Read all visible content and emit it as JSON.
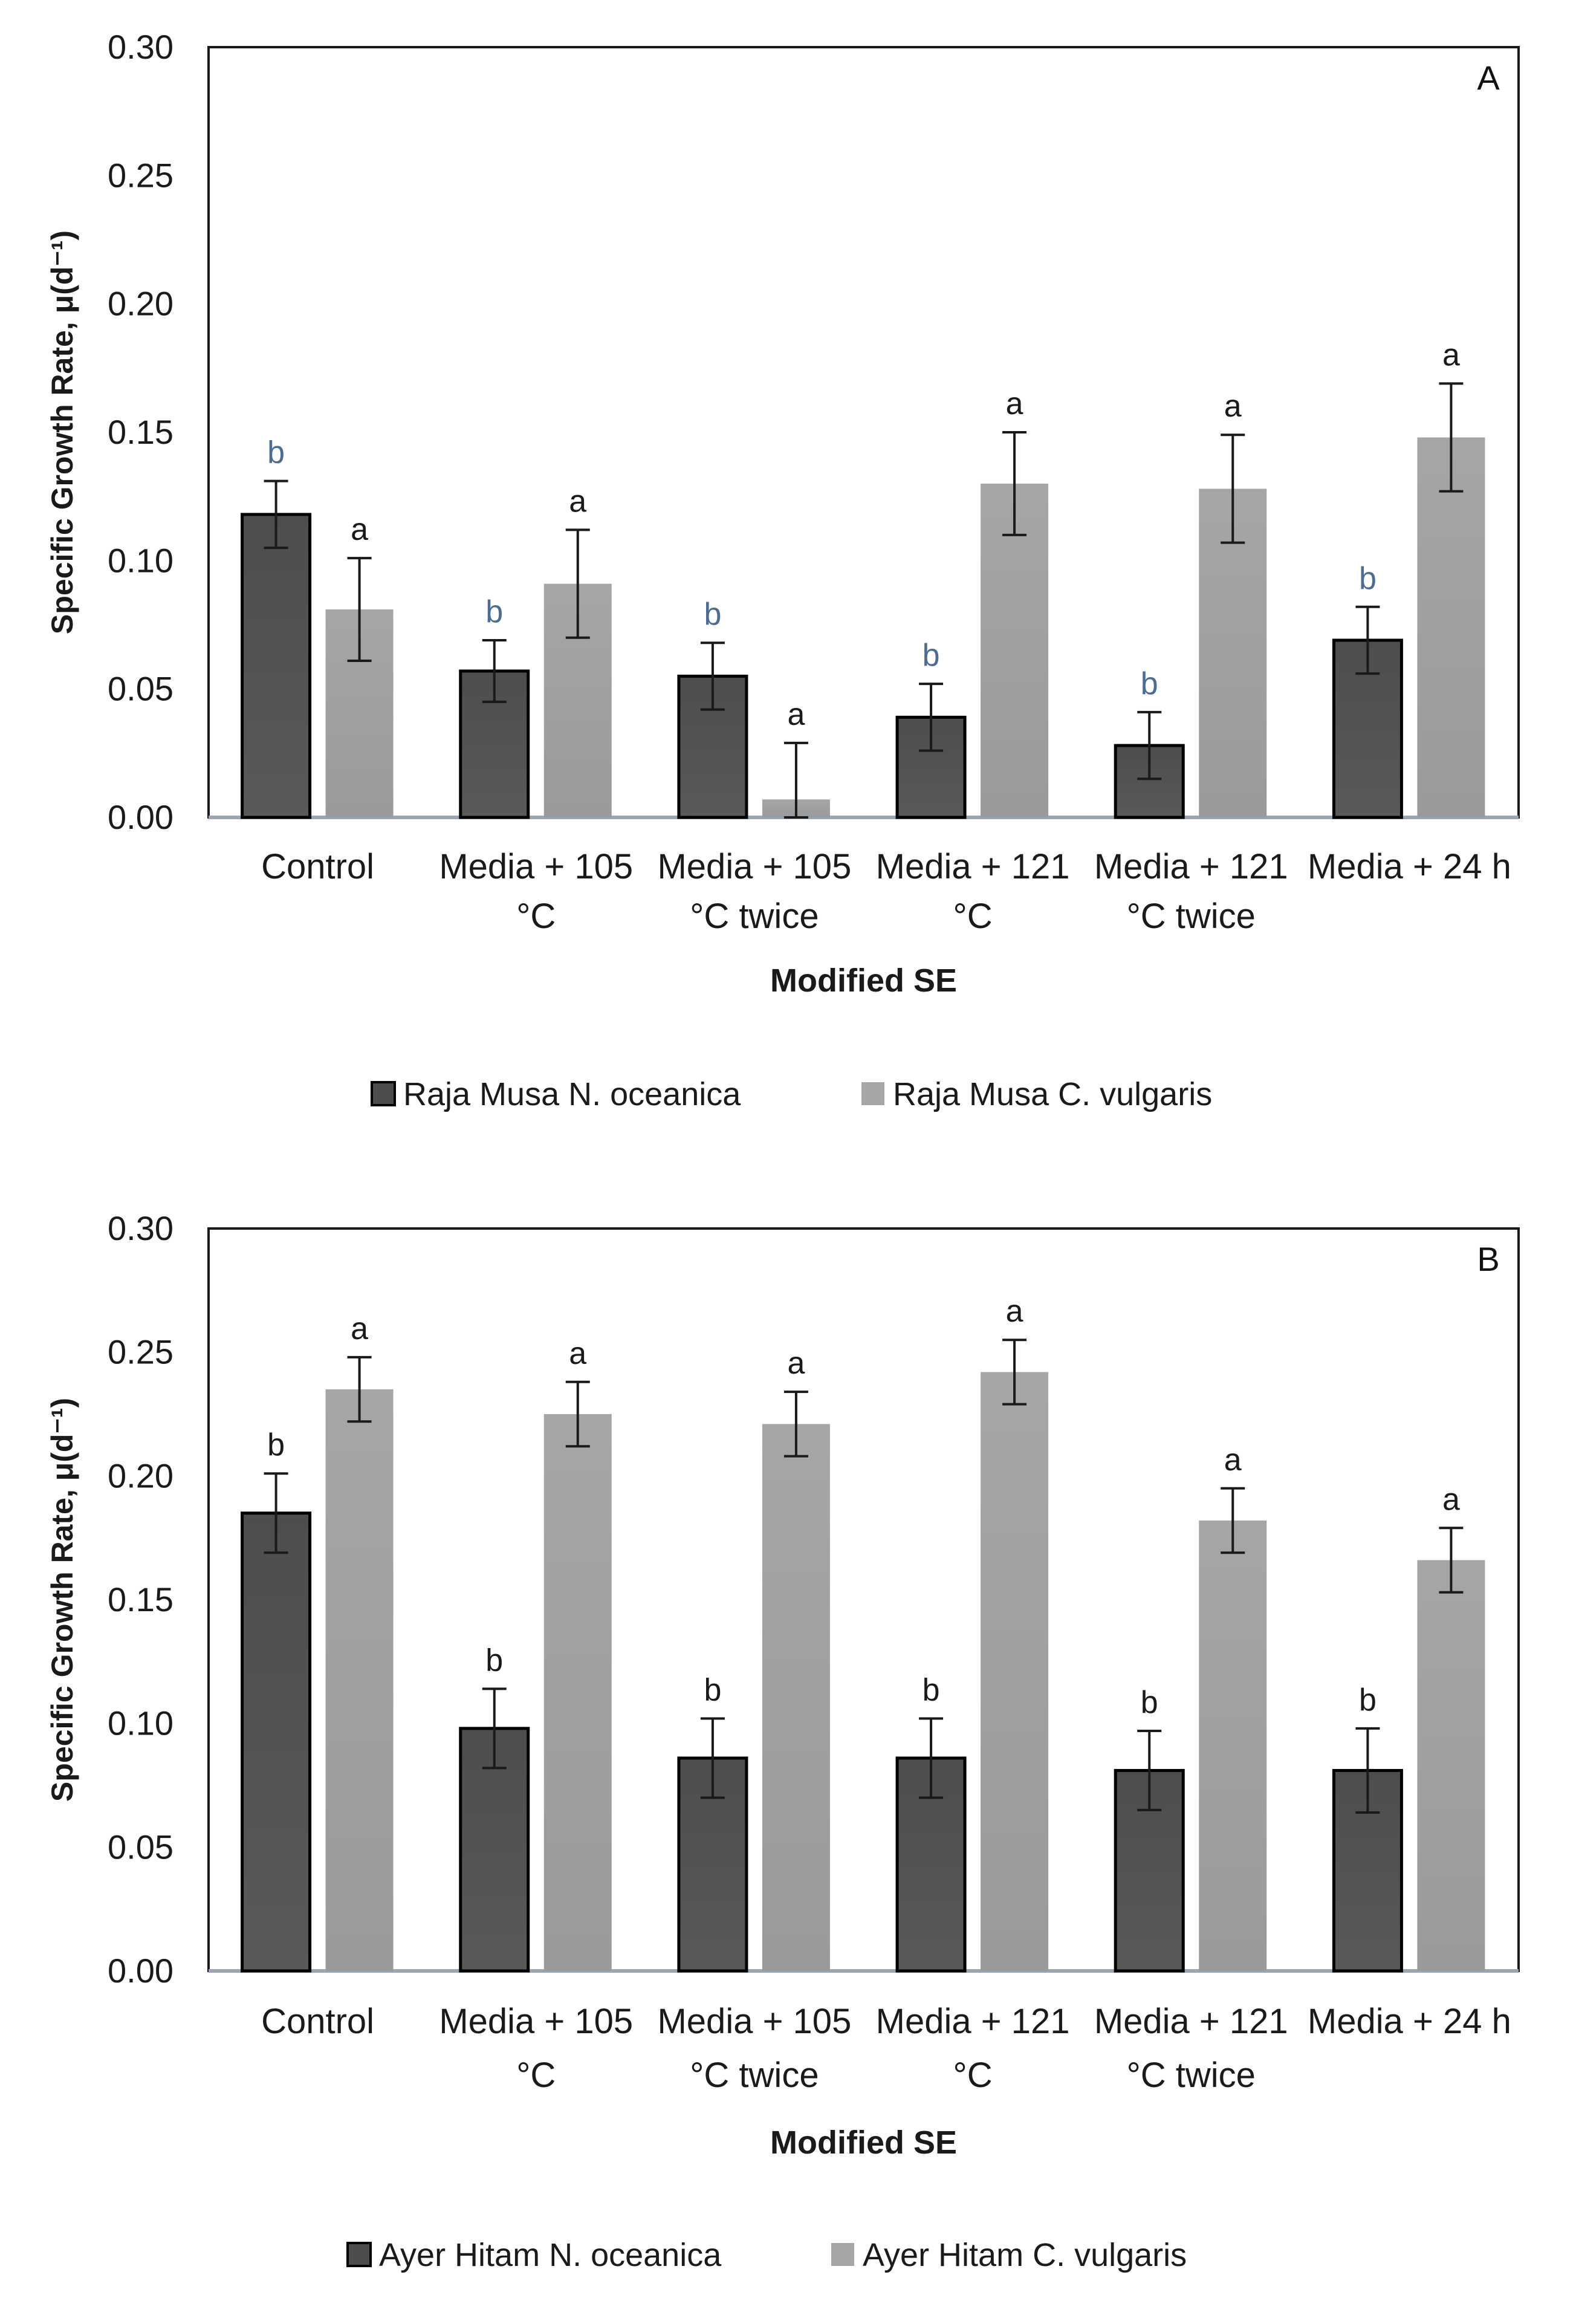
{
  "colors": {
    "dark_bar": "#4d4d4d",
    "light_bar": "#a6a6a6",
    "axis": "#1a1a1a",
    "sig_blue": "#4a6c96",
    "sig_black": "#1a1a1a"
  },
  "chart_data": [
    {
      "type": "bar",
      "panel_label": "A",
      "title": "",
      "xlabel": "Modified SE",
      "ylabel": "Specific Growth Rate, μ(d⁻¹)",
      "ylim": [
        0,
        0.3
      ],
      "yticks": [
        "0.00",
        "0.05",
        "0.10",
        "0.15",
        "0.20",
        "0.25",
        "0.30"
      ],
      "categories": [
        [
          "Control"
        ],
        [
          "Media + 105",
          "°C"
        ],
        [
          "Media + 105",
          "°C twice"
        ],
        [
          "Media + 121",
          "°C"
        ],
        [
          "Media + 121",
          "°C twice"
        ],
        [
          "Media + 24 h"
        ]
      ],
      "series": [
        {
          "name": "Raja Musa N. oceanica",
          "values": [
            0.118,
            0.057,
            0.055,
            0.039,
            0.028,
            0.069
          ],
          "errors": [
            0.013,
            0.012,
            0.013,
            0.013,
            0.013,
            0.013
          ],
          "labels": [
            "b",
            "b",
            "b",
            "b",
            "b",
            "b"
          ],
          "label_color": "blue"
        },
        {
          "name": "Raja Musa C. vulgaris",
          "values": [
            0.081,
            0.091,
            0.007,
            0.13,
            0.128,
            0.148
          ],
          "errors": [
            0.02,
            0.021,
            0.022,
            0.02,
            0.021,
            0.021
          ],
          "labels": [
            "a",
            "a",
            "a",
            "a",
            "a",
            "a"
          ],
          "label_color": "black"
        }
      ],
      "legend": "bottom"
    },
    {
      "type": "bar",
      "panel_label": "B",
      "title": "",
      "xlabel": "Modified SE",
      "ylabel": "Specific Growth Rate, μ(d⁻¹)",
      "ylim": [
        0,
        0.3
      ],
      "yticks": [
        "0.00",
        "0.05",
        "0.10",
        "0.15",
        "0.20",
        "0.25",
        "0.30"
      ],
      "categories": [
        [
          "Control"
        ],
        [
          "Media + 105",
          "°C"
        ],
        [
          "Media + 105",
          "°C twice"
        ],
        [
          "Media + 121",
          "°C"
        ],
        [
          "Media + 121",
          "°C twice"
        ],
        [
          "Media + 24 h"
        ]
      ],
      "series": [
        {
          "name": "Ayer Hitam  N. oceanica",
          "values": [
            0.185,
            0.098,
            0.086,
            0.086,
            0.081,
            0.081
          ],
          "errors": [
            0.016,
            0.016,
            0.016,
            0.016,
            0.016,
            0.017
          ],
          "labels": [
            "b",
            "b",
            "b",
            "b",
            "b",
            "b"
          ],
          "label_color": "black"
        },
        {
          "name": "Ayer Hitam  C. vulgaris",
          "values": [
            0.235,
            0.225,
            0.221,
            0.242,
            0.182,
            0.166
          ],
          "errors": [
            0.013,
            0.013,
            0.013,
            0.013,
            0.013,
            0.013
          ],
          "labels": [
            "a",
            "a",
            "a",
            "a",
            "a",
            "a"
          ],
          "label_color": "black"
        }
      ],
      "legend": "bottom"
    }
  ]
}
